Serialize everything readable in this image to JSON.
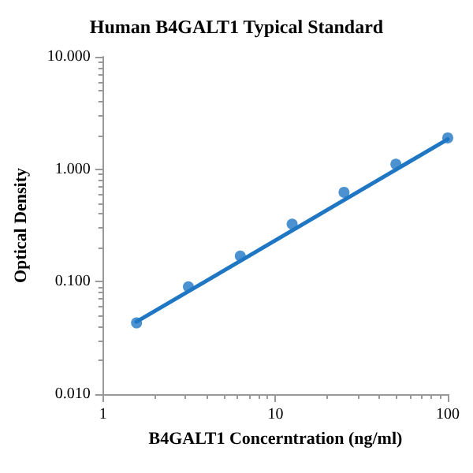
{
  "chart_data": {
    "type": "scatter",
    "title": "Human B4GALT1 Typical Standard",
    "xlabel": "B4GALT1 Concerntration (ng/ml)",
    "ylabel": "Optical Density",
    "log": "xy",
    "grid": false,
    "marker": "circle",
    "xlim": [
      1,
      100
    ],
    "xticks": [
      1,
      10,
      100
    ],
    "ylim": [
      0.01,
      10
    ],
    "yticks": [
      {
        "value": 0.01,
        "label": "0.010"
      },
      {
        "value": 0.1,
        "label": "0.100"
      },
      {
        "value": 1,
        "label": "1.000"
      },
      {
        "value": 10,
        "label": "10.000"
      }
    ],
    "x": [
      1.5625,
      3.125,
      6.25,
      12.5,
      25,
      50,
      100
    ],
    "series": [
      {
        "color": "#1f77c4",
        "values": [
          0.043,
          0.09,
          0.169,
          0.325,
          0.624,
          1.11,
          1.9
        ]
      },
      {
        "type": "line",
        "color": "#1f77c4",
        "marker": "none",
        "line_style": "solid",
        "x": [
          1.5625,
          100
        ],
        "values": [
          0.044,
          1.85
        ]
      }
    ]
  }
}
